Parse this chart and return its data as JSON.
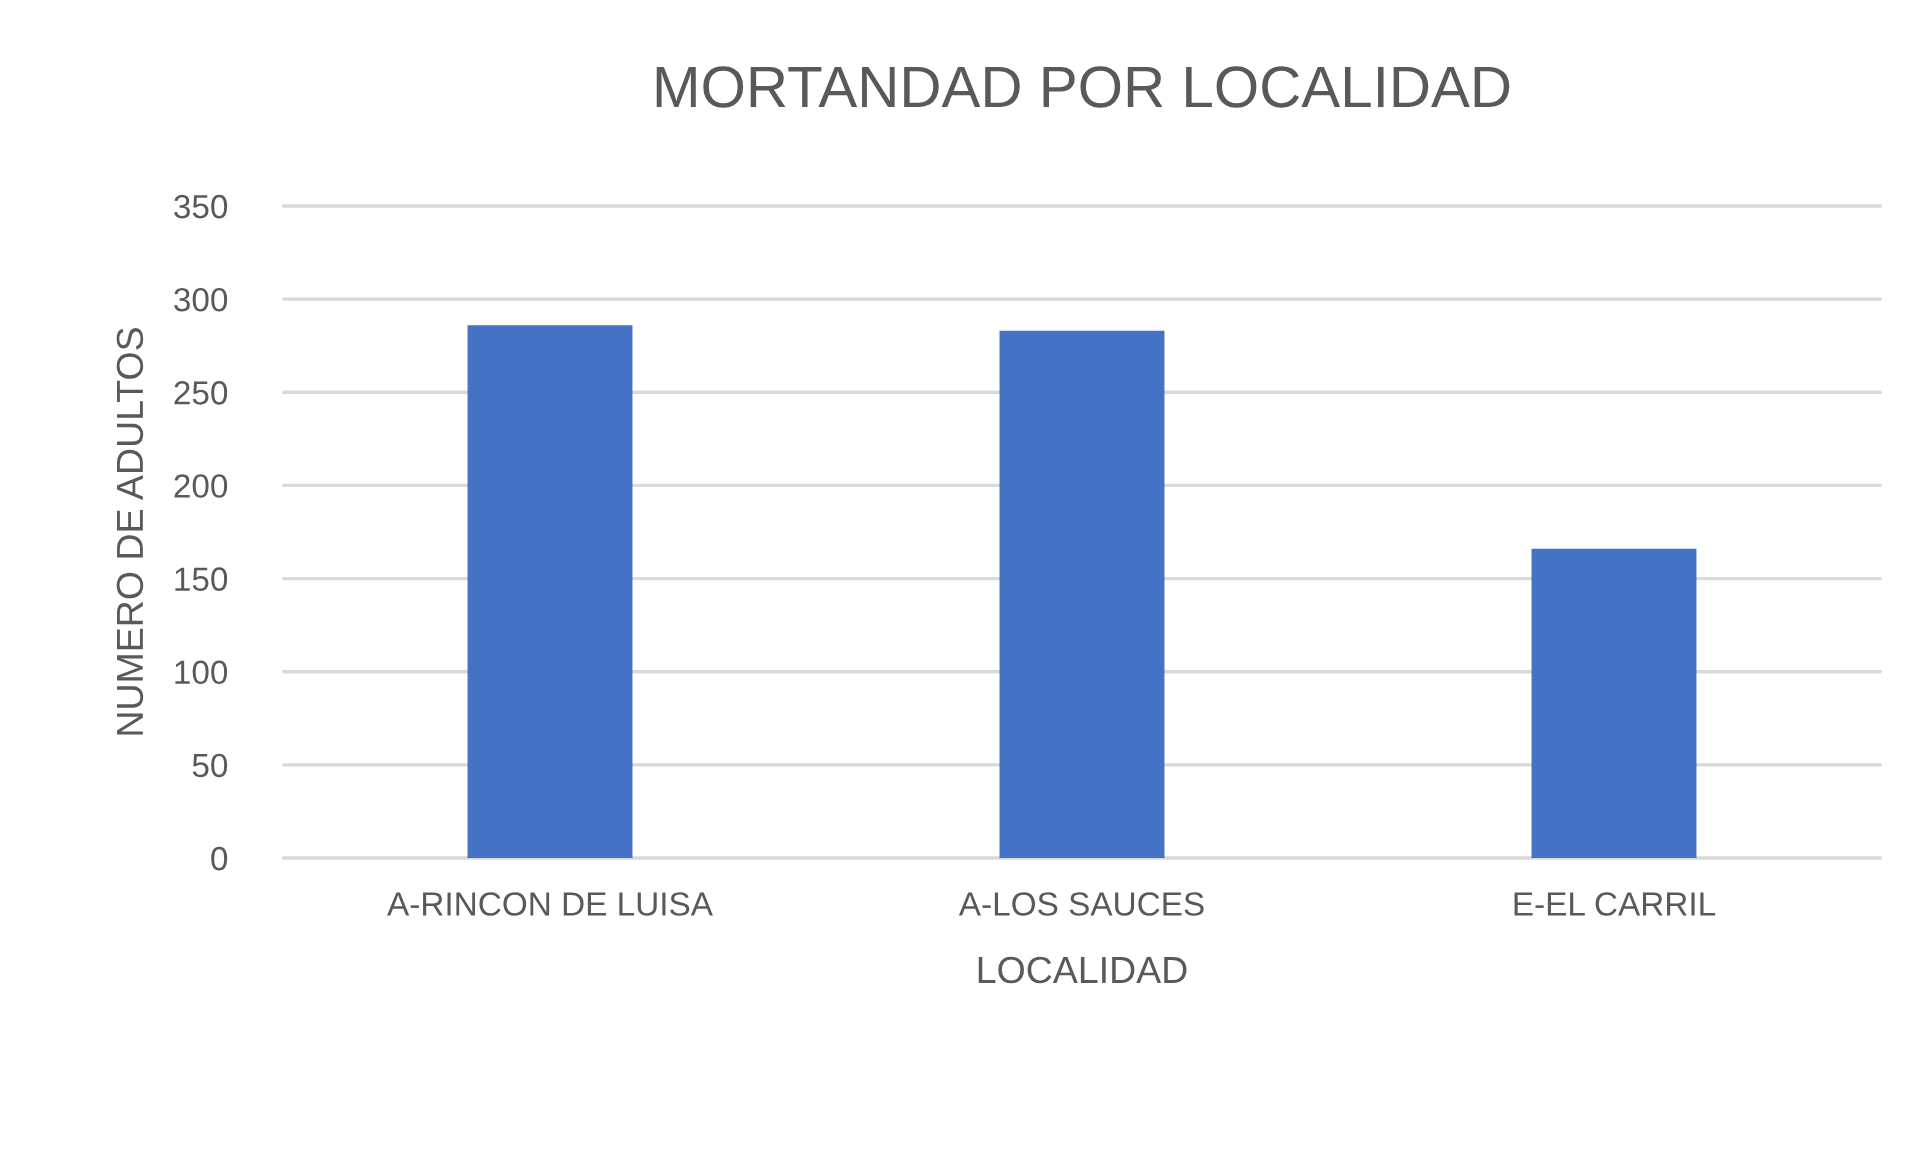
{
  "chart_data": {
    "type": "bar",
    "title": "MORTANDAD POR LOCALIDAD",
    "xlabel": "LOCALIDAD",
    "ylabel": "NUMERO DE ADULTOS",
    "categories": [
      "A-RINCON DE LUISA",
      "A-LOS SAUCES",
      "E-EL CARRIL"
    ],
    "values": [
      286,
      283,
      166
    ],
    "color": "#4472c4",
    "ylim": [
      0,
      350
    ],
    "yticks": [
      0,
      50,
      100,
      150,
      200,
      250,
      300,
      350
    ],
    "grid": "y",
    "legend": false
  }
}
